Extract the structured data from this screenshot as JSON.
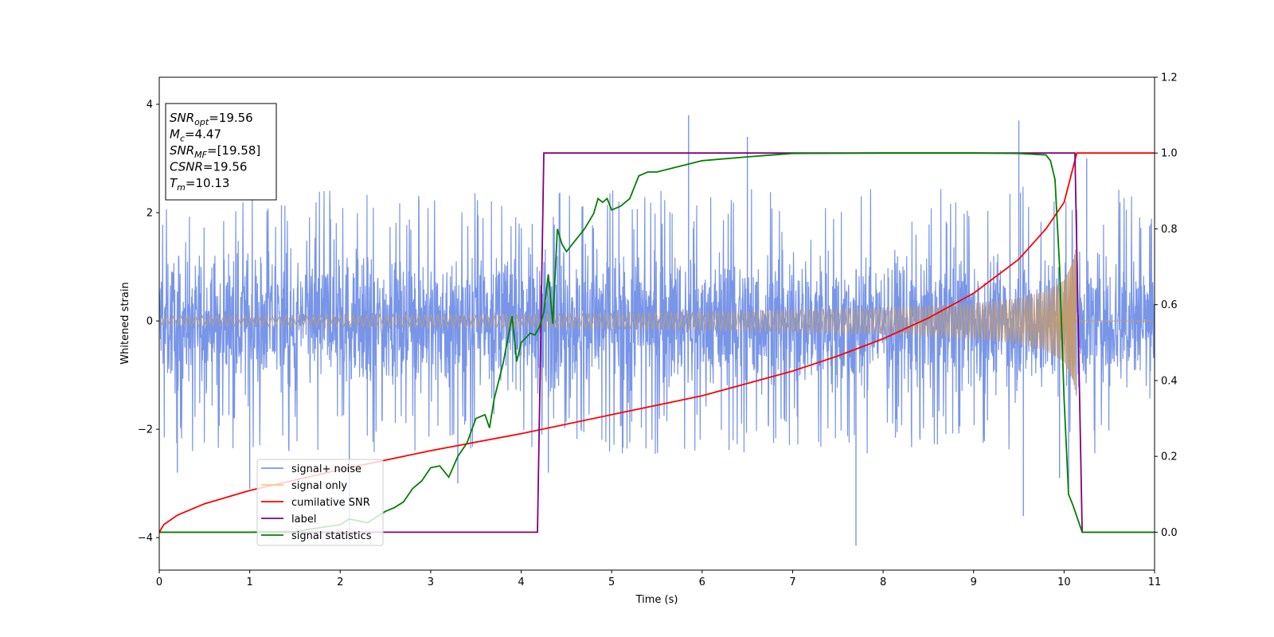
{
  "chart_data": {
    "type": "line",
    "xlabel": "Time (s)",
    "ylabel": "Whitened strain",
    "xlim": [
      0,
      11
    ],
    "ylim": [
      -4.6,
      4.5
    ],
    "y2lim": [
      -0.1,
      1.2
    ],
    "x_ticks": [
      0,
      1,
      2,
      3,
      4,
      5,
      6,
      7,
      8,
      9,
      10,
      11
    ],
    "y_ticks": [
      -4,
      -2,
      0,
      2,
      4
    ],
    "y2_ticks": [
      "0.0",
      "0.2",
      "0.4",
      "0.6",
      "0.8",
      "1.0",
      "1.2"
    ],
    "legend_position": "lower-left",
    "colors": {
      "signal_noise": "#7895e8",
      "signal_only": "#c19b74",
      "signal_only_legend": "#ffc87a",
      "cumulative_snr": "#ff0000",
      "label": "#800080",
      "signal_statistics": "#008000"
    },
    "annotations": [
      {
        "base": "SNR",
        "sub": "opt",
        "rest": "=19.56"
      },
      {
        "base": "M",
        "sub": "c",
        "rest": "=4.47"
      },
      {
        "base": "SNR",
        "sub": "MF",
        "rest": "=[19.58]"
      },
      {
        "base": "CSNR",
        "sub": "",
        "rest": "=19.56"
      },
      {
        "base": "T",
        "sub": "m",
        "rest": "=10.13"
      }
    ],
    "series": [
      {
        "name": "signal+ noise",
        "axis": "left",
        "kind": "noise",
        "envelope": {
          "x": [
            0,
            10.2,
            11
          ],
          "low": [
            -2.4,
            -2.5,
            -2.4
          ],
          "high": [
            2.4,
            2.5,
            2.4
          ]
        },
        "spikes": [
          [
            5.85,
            3.8
          ],
          [
            7.7,
            -4.15
          ],
          [
            9.5,
            3.7
          ],
          [
            9.55,
            -3.6
          ],
          [
            2.1,
            -4.1
          ],
          [
            1.0,
            -3.1
          ],
          [
            0.2,
            -2.8
          ],
          [
            9.95,
            -2.9
          ],
          [
            10.05,
            -3.1
          ],
          [
            6.5,
            3.4
          ],
          [
            3.3,
            -3.0
          ],
          [
            10.25,
            3.0
          ],
          [
            4.3,
            -2.8
          ]
        ]
      },
      {
        "name": "signal only",
        "axis": "left",
        "kind": "chirp",
        "t_merge": 10.13,
        "envelope": {
          "x": [
            0,
            2,
            4,
            6,
            8,
            9,
            9.5,
            9.8,
            10.0,
            10.1,
            10.13
          ],
          "amp": [
            0.09,
            0.11,
            0.13,
            0.17,
            0.25,
            0.33,
            0.42,
            0.55,
            0.75,
            1.1,
            1.35
          ]
        }
      },
      {
        "name": "cumilative SNR",
        "axis": "right",
        "x": [
          0,
          0.05,
          0.2,
          0.5,
          1,
          2,
          3,
          4,
          5,
          6,
          7,
          7.5,
          8,
          8.5,
          9,
          9.5,
          9.8,
          10.0,
          10.13,
          10.14,
          11
        ],
        "y": [
          0.0,
          0.02,
          0.045,
          0.075,
          0.11,
          0.165,
          0.215,
          0.26,
          0.31,
          0.36,
          0.425,
          0.465,
          0.51,
          0.565,
          0.63,
          0.72,
          0.8,
          0.87,
          0.99,
          1.0,
          1.0
        ]
      },
      {
        "name": "label",
        "axis": "right",
        "x": [
          0,
          4.18,
          4.25,
          10.12,
          10.2,
          11
        ],
        "y": [
          0.0,
          0.0,
          1.0,
          1.0,
          0.0,
          0.0
        ]
      },
      {
        "name": "signal statistics",
        "axis": "right",
        "x": [
          0,
          0.5,
          1,
          1.5,
          2,
          2.1,
          2.3,
          2.5,
          2.6,
          2.7,
          2.8,
          2.9,
          3.0,
          3.1,
          3.2,
          3.3,
          3.4,
          3.5,
          3.6,
          3.65,
          3.7,
          3.8,
          3.9,
          3.95,
          4.0,
          4.1,
          4.15,
          4.2,
          4.25,
          4.3,
          4.35,
          4.4,
          4.45,
          4.5,
          4.6,
          4.7,
          4.8,
          4.85,
          4.9,
          4.95,
          5.0,
          5.1,
          5.2,
          5.3,
          5.4,
          5.5,
          6.0,
          6.5,
          7.0,
          8.0,
          9.0,
          9.5,
          9.8,
          9.85,
          9.9,
          9.95,
          10.0,
          10.05,
          10.1,
          10.15,
          10.2,
          11
        ],
        "y": [
          0.0,
          0.0,
          0.0,
          0.002,
          0.02,
          0.035,
          0.025,
          0.055,
          0.065,
          0.08,
          0.115,
          0.135,
          0.17,
          0.175,
          0.145,
          0.2,
          0.235,
          0.3,
          0.31,
          0.275,
          0.35,
          0.445,
          0.57,
          0.45,
          0.5,
          0.525,
          0.52,
          0.54,
          0.58,
          0.68,
          0.55,
          0.8,
          0.76,
          0.74,
          0.77,
          0.8,
          0.84,
          0.88,
          0.87,
          0.88,
          0.85,
          0.86,
          0.88,
          0.94,
          0.95,
          0.95,
          0.98,
          0.99,
          0.999,
          1.0,
          1.0,
          0.999,
          0.995,
          0.98,
          0.93,
          0.7,
          0.35,
          0.1,
          0.07,
          0.035,
          0.0,
          0.0
        ]
      }
    ]
  }
}
